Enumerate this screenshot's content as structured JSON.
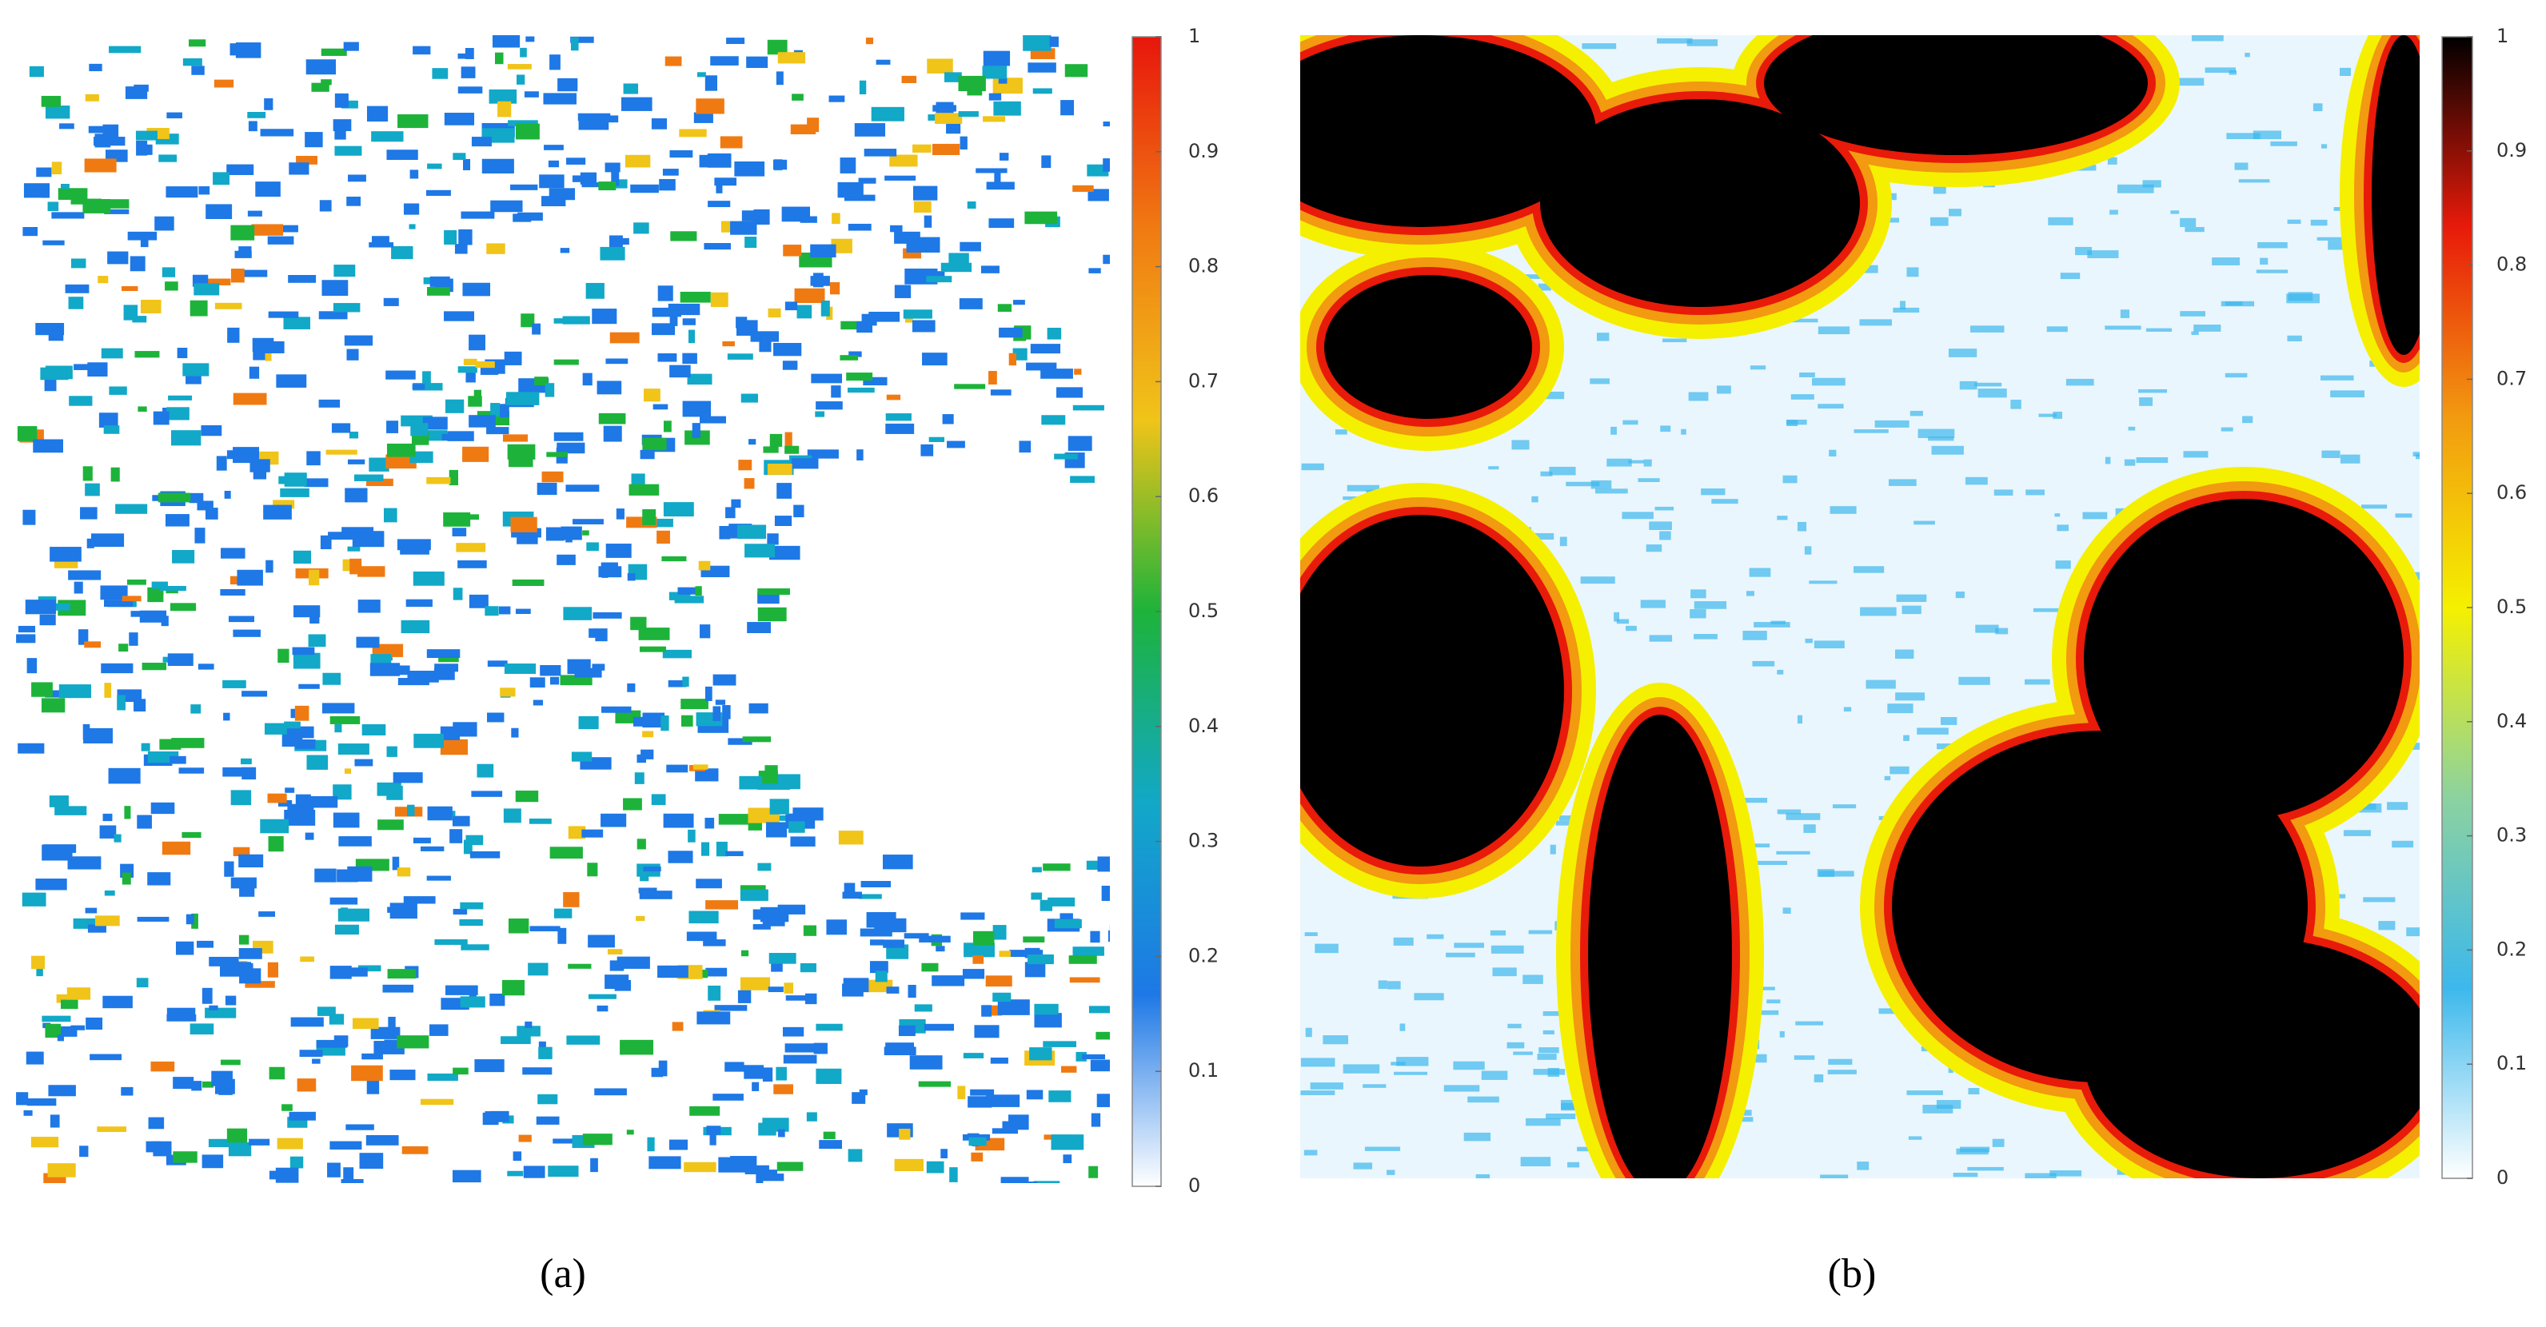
{
  "figure": {
    "panels": [
      {
        "label": "(a)",
        "clim": [
          0,
          1
        ],
        "ticks": [
          0,
          0.1,
          0.2,
          0.3,
          0.4,
          0.5,
          0.6,
          0.7,
          0.8,
          0.9,
          1
        ],
        "colormap": [
          "#ffffff",
          "#1e78e6",
          "#12a8c8",
          "#1db33a",
          "#f0c419",
          "#f07a12",
          "#e8160c"
        ]
      },
      {
        "label": "(b)",
        "clim": [
          0,
          1
        ],
        "ticks": [
          0,
          0.1,
          0.2,
          0.3,
          0.4,
          0.5,
          0.6,
          0.7,
          0.8,
          0.9,
          1
        ],
        "colormap": [
          "#ffffff",
          "#3cb8ec",
          "#8cd2a0",
          "#f5f000",
          "#f29a10",
          "#e81a0a",
          "#000000"
        ]
      }
    ]
  }
}
